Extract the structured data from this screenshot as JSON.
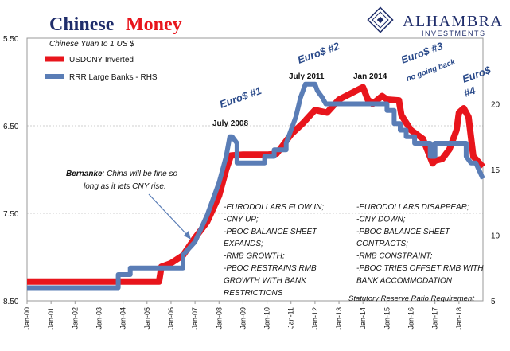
{
  "chart_data": {
    "type": "line",
    "title_part1": "Chinese",
    "title_part2": "Money",
    "subtitle": "Chinese Yuan to 1 US $",
    "brand": {
      "name": "ALHAMBRA",
      "sub": "INVESTMENTS"
    },
    "colors": {
      "title_navy": "#1f2d6b",
      "title_red": "#e8151c",
      "series_red": "#e8151c",
      "series_blue": "#5a7db6",
      "annotation_blue": "#2a4a8a"
    },
    "x_ticks": [
      "Jan-00",
      "Jan-01",
      "Jan-02",
      "Jan-03",
      "Jan-04",
      "Jan-05",
      "Jan-06",
      "Jan-07",
      "Jan-08",
      "Jan-09",
      "Jan-10",
      "Jan-11",
      "Jan-12",
      "Jan-13",
      "Jan-14",
      "Jan-15",
      "Jan-16",
      "Jan-17",
      "Jan-18"
    ],
    "xlim": [
      2000.0,
      2019.0
    ],
    "left_axis": {
      "ticks": [
        "5.50",
        "6.50",
        "7.50",
        "8.50"
      ],
      "tick_values": [
        5.5,
        6.5,
        7.5,
        8.5
      ],
      "ylim": [
        5.5,
        8.5
      ],
      "inverted": true
    },
    "right_axis": {
      "ticks": [
        "20",
        "15",
        "10",
        "5"
      ],
      "tick_values": [
        20,
        15,
        10,
        5
      ],
      "ylim": [
        5,
        25
      ]
    },
    "grid": true,
    "legend_position": "top-left",
    "series": [
      {
        "name": "USDCNY Inverted",
        "axis": "left",
        "x": [
          2000.0,
          2005.5,
          2005.6,
          2006.0,
          2006.5,
          2007.0,
          2007.5,
          2008.0,
          2008.3,
          2008.5,
          2009.0,
          2009.5,
          2010.0,
          2010.4,
          2010.7,
          2011.0,
          2011.5,
          2012.0,
          2012.5,
          2013.0,
          2013.5,
          2014.0,
          2014.2,
          2014.4,
          2014.8,
          2015.0,
          2015.5,
          2015.6,
          2016.0,
          2016.5,
          2016.9,
          2017.0,
          2017.3,
          2017.6,
          2017.9,
          2018.0,
          2018.2,
          2018.4,
          2018.6,
          2019.0
        ],
        "y": [
          8.28,
          8.28,
          8.11,
          8.07,
          7.98,
          7.78,
          7.6,
          7.3,
          7.0,
          6.84,
          6.83,
          6.83,
          6.83,
          6.82,
          6.71,
          6.6,
          6.47,
          6.32,
          6.35,
          6.2,
          6.13,
          6.06,
          6.2,
          6.25,
          6.16,
          6.2,
          6.21,
          6.38,
          6.55,
          6.65,
          6.93,
          6.9,
          6.88,
          6.77,
          6.55,
          6.35,
          6.3,
          6.4,
          6.85,
          6.97
        ]
      },
      {
        "name": "RRR Large Banks - RHS",
        "axis": "right",
        "x": [
          2000.0,
          2003.8,
          2003.8,
          2004.3,
          2004.3,
          2006.5,
          2006.5,
          2007.0,
          2007.5,
          2008.0,
          2008.3,
          2008.45,
          2008.55,
          2008.75,
          2008.75,
          2009.9,
          2009.9,
          2010.3,
          2010.3,
          2010.8,
          2010.8,
          2011.0,
          2011.2,
          2011.4,
          2011.6,
          2011.8,
          2012.0,
          2012.1,
          2012.3,
          2012.45,
          2012.45,
          2015.0,
          2015.0,
          2015.3,
          2015.3,
          2015.55,
          2015.55,
          2015.8,
          2015.8,
          2016.15,
          2016.15,
          2016.8,
          2016.8,
          2017.0,
          2017.0,
          2018.3,
          2018.3,
          2018.5,
          2018.7,
          2019.0
        ],
        "y": [
          6.0,
          6.0,
          7.0,
          7.0,
          7.5,
          7.5,
          8.5,
          9.5,
          11.5,
          14.0,
          16.0,
          17.5,
          17.5,
          17.0,
          15.5,
          15.5,
          16.0,
          16.0,
          16.5,
          16.5,
          17.0,
          18.0,
          19.0,
          20.5,
          21.5,
          21.5,
          21.5,
          21.0,
          20.5,
          20.0,
          20.0,
          20.0,
          19.5,
          19.5,
          18.5,
          18.5,
          18.0,
          18.0,
          17.5,
          17.5,
          17.0,
          17.0,
          16.0,
          16.0,
          17.0,
          17.0,
          16.0,
          15.5,
          15.5,
          14.3
        ]
      }
    ],
    "annotations": {
      "euro1": "Euro$ #1",
      "euro2": "Euro$ #2",
      "euro3": "Euro$ #3",
      "euro3_sub": "no going back",
      "euro4_a": "Euro$",
      "euro4_b": "#4",
      "july2008": "July 2008",
      "july2011": "July 2011",
      "jan2014": "Jan 2014",
      "bernanke_name": "Bernanke",
      "bernanke_rest": ": China will be fine so",
      "bernanke_line2": "long as it lets CNY rise.",
      "left_block": [
        "-EURODOLLARS FLOW IN;",
        "-CNY UP;",
        "-PBOC BALANCE SHEET",
        "EXPANDS;",
        "-RMB GROWTH;",
        "-PBOC RESTRAINS RMB",
        "GROWTH WITH BANK",
        "RESTRICTIONS"
      ],
      "right_block": [
        "-EURODOLLARS DISAPPEAR;",
        "-CNY DOWN;",
        "-PBOC BALANCE SHEET",
        "CONTRACTS;",
        "-RMB CONSTRAINT;",
        "-PBOC TRIES OFFSET RMB WITH",
        "BANK ACCOMMODATION"
      ],
      "footnote": "Statutory Reserve Ratio Requirement"
    }
  }
}
